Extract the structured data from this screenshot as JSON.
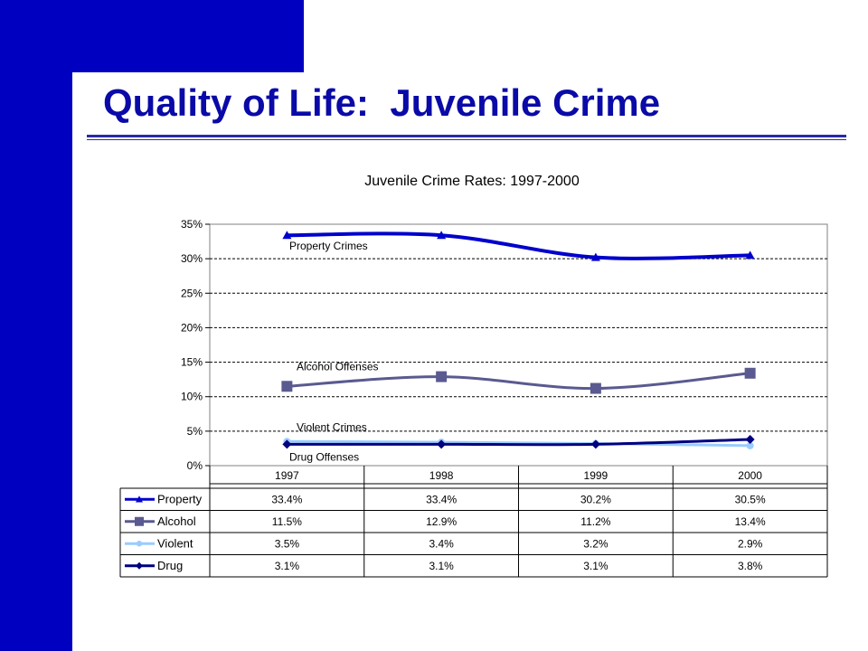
{
  "slide": {
    "title": "Quality of Life:  Juvenile Crime",
    "colors": {
      "band": "#0000c0",
      "title": "#0a0aa8"
    }
  },
  "chart_data": {
    "type": "line",
    "title": "Juvenile Crime Rates: 1997-2000",
    "categories": [
      "1997",
      "1998",
      "1999",
      "2000"
    ],
    "ylim": [
      0,
      35
    ],
    "yticks": [
      "0%",
      "5%",
      "10%",
      "15%",
      "20%",
      "25%",
      "30%",
      "35%"
    ],
    "grid": true,
    "legend": "data-table-below",
    "series": [
      {
        "name": "Property",
        "values": [
          33.4,
          33.4,
          30.2,
          30.5
        ],
        "labels": [
          "33.4%",
          "33.4%",
          "30.2%",
          "30.5%"
        ],
        "color": "#0000cc",
        "marker": "triangle",
        "annotation": "Property Crimes"
      },
      {
        "name": "Alcohol",
        "values": [
          11.5,
          12.9,
          11.2,
          13.4
        ],
        "labels": [
          "11.5%",
          "12.9%",
          "11.2%",
          "13.4%"
        ],
        "color": "#5a5a90",
        "marker": "square",
        "annotation": "Alcohol Offenses"
      },
      {
        "name": "Violent",
        "values": [
          3.5,
          3.4,
          3.2,
          2.9
        ],
        "labels": [
          "3.5%",
          "3.4%",
          "3.2%",
          "2.9%"
        ],
        "color": "#99ccff",
        "marker": "circle",
        "annotation": "Violent Crimes"
      },
      {
        "name": "Drug",
        "values": [
          3.1,
          3.1,
          3.1,
          3.8
        ],
        "labels": [
          "3.1%",
          "3.1%",
          "3.1%",
          "3.8%"
        ],
        "color": "#000080",
        "marker": "diamond",
        "annotation": "Drug Offenses"
      }
    ]
  }
}
